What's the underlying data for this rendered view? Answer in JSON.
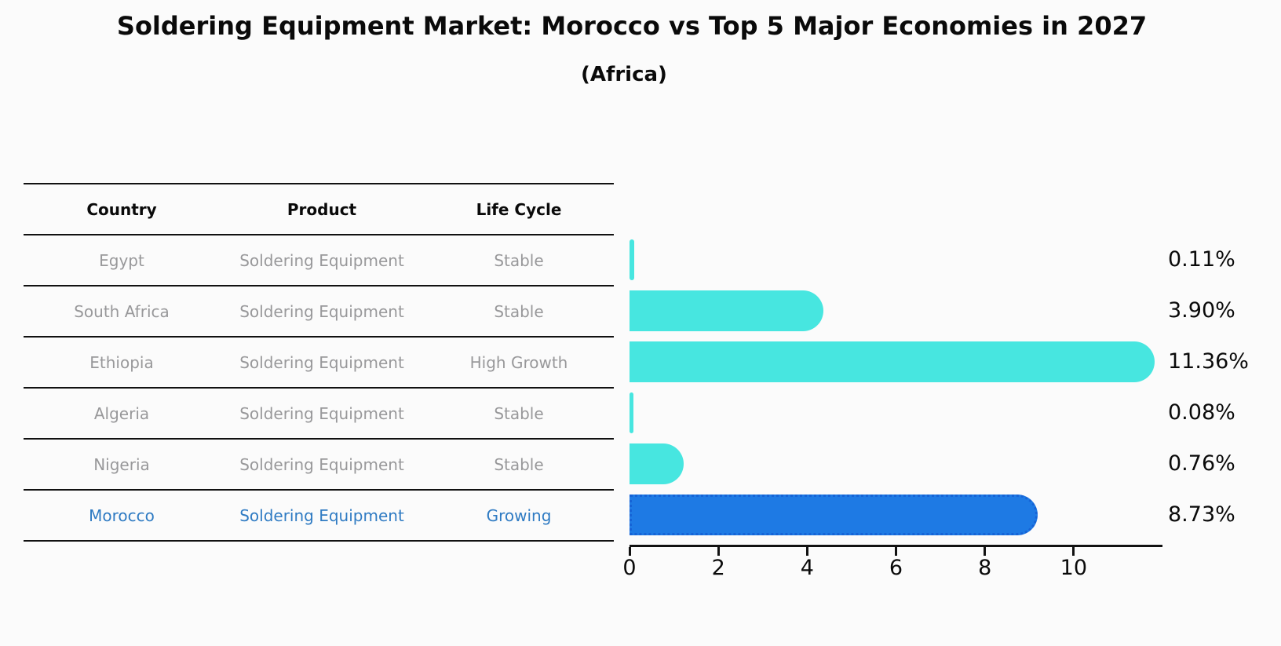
{
  "title": "Soldering Equipment Market: Morocco vs Top 5 Major Economies in 2027",
  "subtitle": "(Africa)",
  "table": {
    "headers": {
      "country": "Country",
      "product": "Product",
      "life_cycle": "Life Cycle"
    },
    "rows": [
      {
        "country": "Egypt",
        "product": "Soldering Equipment",
        "life_cycle": "Stable",
        "highlight": false
      },
      {
        "country": "South Africa",
        "product": "Soldering Equipment",
        "life_cycle": "Stable",
        "highlight": false
      },
      {
        "country": "Ethiopia",
        "product": "Soldering Equipment",
        "life_cycle": "High Growth",
        "highlight": false
      },
      {
        "country": "Algeria",
        "product": "Soldering Equipment",
        "life_cycle": "Stable",
        "highlight": false
      },
      {
        "country": "Nigeria",
        "product": "Soldering Equipment",
        "life_cycle": "Stable",
        "highlight": false
      },
      {
        "country": "Morocco",
        "product": "Soldering Equipment",
        "life_cycle": "Growing",
        "highlight": true
      }
    ]
  },
  "chart_data": {
    "type": "bar",
    "orientation": "horizontal",
    "title": "Soldering Equipment Market: Morocco vs Top 5 Major Economies in 2027 (Africa)",
    "categories": [
      "Egypt",
      "South Africa",
      "Ethiopia",
      "Algeria",
      "Nigeria",
      "Morocco"
    ],
    "values": [
      0.11,
      3.9,
      11.36,
      0.08,
      0.76,
      8.73
    ],
    "value_labels": [
      "0.11%",
      "3.90%",
      "11.36%",
      "0.08%",
      "0.76%",
      "8.73%"
    ],
    "xlim": [
      0,
      12
    ],
    "xticks": [
      0,
      2,
      4,
      6,
      8,
      10
    ],
    "grid": false,
    "legend_position": "none",
    "highlight_category": "Morocco"
  },
  "colors": {
    "bar": "#47e6e0",
    "highlight_bar": "#1e7ae4",
    "highlight_bar_border": "#1663d6",
    "highlight_text": "#2f7bc3",
    "muted_text": "#98989a",
    "text": "#0a0a0a"
  }
}
